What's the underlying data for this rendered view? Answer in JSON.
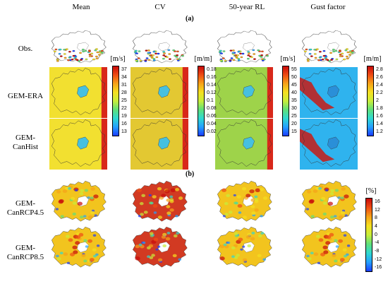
{
  "columns": [
    "Mean",
    "CV",
    "50-year RL",
    "Gust factor"
  ],
  "panel_labels": {
    "a": "(a)",
    "b": "(b)"
  },
  "rows_a": [
    {
      "label_lines": [
        "Obs."
      ]
    },
    {
      "label_lines": [
        "GEM-ERA"
      ]
    },
    {
      "label_lines": [
        "GEM-",
        "CanHist"
      ]
    }
  ],
  "rows_b": [
    {
      "label_lines": [
        "GEM-",
        "CanRCP4.5"
      ]
    },
    {
      "label_lines": [
        "GEM-",
        "CanRCP8.5"
      ]
    }
  ],
  "colorbars": {
    "mean": {
      "unit": "[m/s]",
      "ticks": [
        "37",
        "34",
        "31",
        "28",
        "25",
        "22",
        "19",
        "16",
        "13"
      ],
      "stops": [
        "#1a3cff",
        "#24a0ff",
        "#2fd9d0",
        "#5fe07a",
        "#c8ee3a",
        "#f5e020",
        "#f7a318",
        "#ef4d14",
        "#c80a0a"
      ]
    },
    "cv": {
      "unit": "[m/m]",
      "ticks": [
        "0.18",
        "0.16",
        "0.14",
        "0.12",
        "0.1",
        "0.08",
        "0.06",
        "0.04",
        "0.02"
      ],
      "stops": [
        "#1a3cff",
        "#24a0ff",
        "#2fd9d0",
        "#5fe07a",
        "#c8ee3a",
        "#f5e020",
        "#f7a318",
        "#ef4d14",
        "#c80a0a"
      ]
    },
    "rl": {
      "unit": "[m/s]",
      "ticks": [
        "55",
        "50",
        "45",
        "40",
        "35",
        "30",
        "25",
        "20",
        "15"
      ],
      "stops": [
        "#1a3cff",
        "#24a0ff",
        "#2fd9d0",
        "#5fe07a",
        "#c8ee3a",
        "#f5e020",
        "#f7a318",
        "#ef4d14",
        "#c80a0a"
      ]
    },
    "gust": {
      "unit": "[m/m]",
      "ticks": [
        "2.8",
        "2.6",
        "2.4",
        "2.2",
        "2",
        "1.8",
        "1.6",
        "1.4",
        "1.2"
      ],
      "stops": [
        "#1a3cff",
        "#24a0ff",
        "#2fd9d0",
        "#5fe07a",
        "#c8ee3a",
        "#f5e020",
        "#f7a318",
        "#ef4d14",
        "#c80a0a"
      ]
    },
    "change": {
      "unit": "[%]",
      "ticks": [
        "16",
        "12",
        "8",
        "4",
        "0",
        "-4",
        "-8",
        "-12",
        "-16"
      ],
      "stops": [
        "#1a3cff",
        "#24a0ff",
        "#2fd9d0",
        "#5fe07a",
        "#c8ee3a",
        "#f5e020",
        "#f7a318",
        "#ef4d14",
        "#c80a0a"
      ]
    }
  },
  "map_fills": {
    "mean_model": "#f2e030",
    "cv_model": "#e3c832",
    "rl_model": "#9ed34a",
    "gust_model": "#2fb3ee",
    "gust_model_hot": "#c81a14",
    "change_model": "#f2c41e",
    "cv_change": "#d23a22"
  }
}
